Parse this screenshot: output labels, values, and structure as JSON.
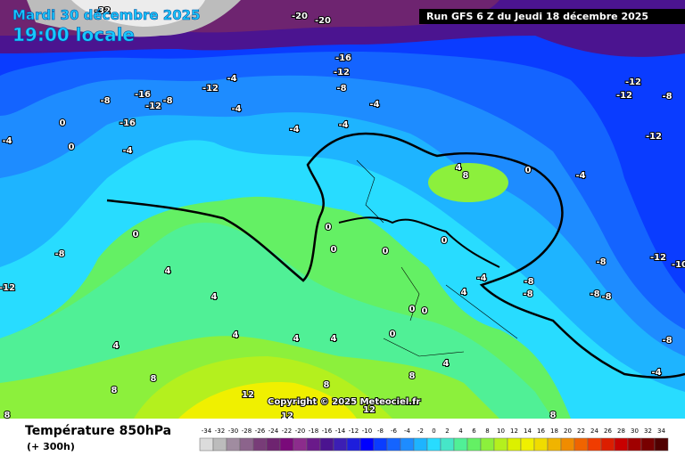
{
  "header": {
    "date": "Mardi 30 décembre 2025",
    "time": "19:00 locale",
    "run": "Run GFS 6 Z du Jeudi 18 décembre 2025"
  },
  "footer": {
    "title": "Température 850hPa",
    "subtitle": "(+ 300h)",
    "copyright": "Copyright © 2025 Meteociel.fr"
  },
  "legend": {
    "values": [
      -34,
      -32,
      -30,
      -28,
      -26,
      -24,
      -22,
      -20,
      -18,
      -16,
      -14,
      -12,
      -10,
      -8,
      -6,
      -4,
      -2,
      0,
      2,
      4,
      6,
      8,
      10,
      12,
      14,
      16,
      18,
      20,
      22,
      24,
      26,
      28,
      30,
      32,
      34
    ],
    "colors": [
      "#dcdcdc",
      "#bcbcbc",
      "#a08ca0",
      "#8c648c",
      "#783c78",
      "#6e2470",
      "#7a0a7a",
      "#8c2c8c",
      "#6a1a8a",
      "#4b1490",
      "#3c1eb4",
      "#1e1edc",
      "#0000ff",
      "#0a3cff",
      "#1464ff",
      "#1e8cff",
      "#1eb4ff",
      "#28dcff",
      "#46e6c8",
      "#50f096",
      "#64f064",
      "#8cf03c",
      "#b4f01e",
      "#dcf000",
      "#f0f000",
      "#f0dc00",
      "#f0b400",
      "#f08c00",
      "#f06400",
      "#f03c00",
      "#dc1e00",
      "#c80000",
      "#a00000",
      "#780000",
      "#500000"
    ]
  },
  "contour_labels": [
    -32,
    -20,
    -20,
    -16,
    -12,
    -8,
    -4,
    -4,
    -4,
    -4,
    -4,
    -12,
    -8,
    -16,
    -12,
    -8,
    -16,
    0,
    0,
    -4,
    -4,
    -12,
    -12,
    -8,
    -12,
    4,
    8,
    0,
    -4,
    0,
    -8,
    -12,
    4,
    4,
    4,
    4,
    4,
    4,
    0,
    0,
    0,
    0,
    -4,
    4,
    -8,
    -8,
    -8,
    -12,
    -10,
    -8,
    -8,
    -8,
    0,
    0,
    0,
    8,
    8,
    4,
    8,
    8,
    12,
    12,
    12,
    8,
    8,
    -4
  ]
}
